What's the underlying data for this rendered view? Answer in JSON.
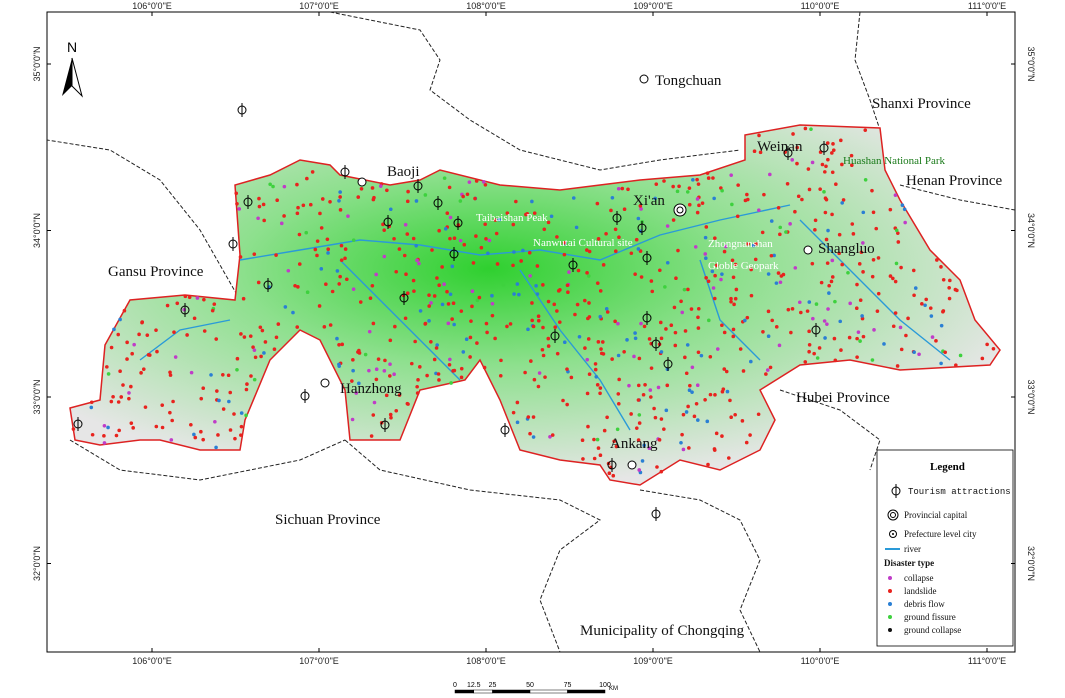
{
  "north_arrow": "N",
  "lon_ticks": [
    {
      "value": 106,
      "label": "106°0'0\"E"
    },
    {
      "value": 107,
      "label": "107°0'0\"E"
    },
    {
      "value": 108,
      "label": "108°0'0\"E"
    },
    {
      "value": 109,
      "label": "109°0'0\"E"
    },
    {
      "value": 110,
      "label": "110°0'0\"E"
    },
    {
      "value": 111,
      "label": "111°0'0\"E"
    }
  ],
  "lat_ticks": [
    {
      "value": 35,
      "label": "35°0'0\"N"
    },
    {
      "value": 34,
      "label": "34°0'0\"N"
    },
    {
      "value": 33,
      "label": "33°0'0\"N"
    },
    {
      "value": 32,
      "label": "32°0'0\"N"
    }
  ],
  "places": {
    "tongchuan": "Tongchuan",
    "shanxi": "Shanxi Province",
    "weinan": "Weinan",
    "huashan": "Huashan National Park",
    "henan": "Henan Province",
    "baoji": "Baoji",
    "xian": "Xi'an",
    "taibaishan": "Taibaishan Peak",
    "nanwutai": "Nanwutai Cultural site",
    "zhongnanshan_1": "Zhongnanshan",
    "zhongnanshan_2": "Globle Geopark",
    "shangluo": "Shangluo",
    "gansu": "Gansu Province",
    "hanzhong": "Hanzhong",
    "hubei": "Hubei Province",
    "ankang": "Ankang",
    "sichuan": "Sichuan Province",
    "chongqing": "Municipality of Chongqing"
  },
  "legend": {
    "title": "Legend",
    "tourism": "Tourism attractions",
    "capital": "Provincial capital",
    "prefecture": "Prefecture level city",
    "river": "river",
    "disaster_title": "Disaster type",
    "disasters": [
      {
        "name": "collapse",
        "color": "#c03cc8"
      },
      {
        "name": "landslide",
        "color": "#e8231e"
      },
      {
        "name": "debris flow",
        "color": "#2a7fd4"
      },
      {
        "name": "ground fissure",
        "color": "#3ed13e"
      },
      {
        "name": "ground collapse",
        "color": "#111111"
      }
    ]
  },
  "scale": {
    "ticks": [
      0,
      12.5,
      25,
      50,
      75,
      100
    ],
    "unit": "KM"
  }
}
